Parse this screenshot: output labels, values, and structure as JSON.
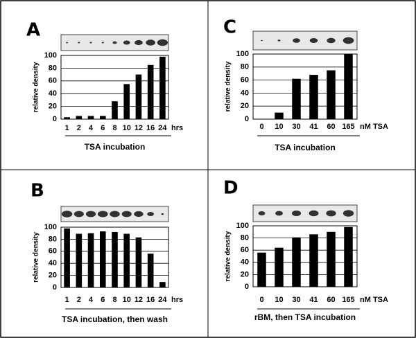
{
  "chart_data": [
    {
      "type": "bar",
      "panel": "A",
      "y_label": "relative density",
      "x_label": "TSA incubation",
      "x_unit": "hrs",
      "categories": [
        "1",
        "2",
        "4",
        "6",
        "8",
        "10",
        "12",
        "16",
        "24"
      ],
      "values": [
        3,
        5,
        5,
        5,
        28,
        55,
        70,
        85,
        98
      ],
      "color": "#000000",
      "ylim": [
        0,
        100
      ],
      "yticks": [
        0,
        20,
        40,
        60,
        80,
        100
      ],
      "grid": true
    },
    {
      "type": "bar",
      "panel": "C",
      "y_label": "relative density",
      "x_label": "TSA incubation",
      "x_unit": "nM TSA",
      "categories": [
        "0",
        "10",
        "30",
        "41",
        "60",
        "165"
      ],
      "values": [
        0,
        10,
        62,
        68,
        75,
        100
      ],
      "color": "#000000",
      "ylim": [
        0,
        100
      ],
      "yticks": [
        0,
        20,
        40,
        60,
        80,
        100
      ],
      "grid": true
    },
    {
      "type": "bar",
      "panel": "B",
      "y_label": "relative density",
      "x_label": "TSA incubation, then wash",
      "x_unit": "hrs",
      "categories": [
        "1",
        "2",
        "4",
        "6",
        "8",
        "10",
        "12",
        "16",
        "24"
      ],
      "values": [
        98,
        89,
        90,
        93,
        92,
        89,
        83,
        56,
        9
      ],
      "color": "#000000",
      "ylim": [
        0,
        100
      ],
      "yticks": [
        0,
        20,
        40,
        60,
        80,
        100
      ],
      "grid": true
    },
    {
      "type": "bar",
      "panel": "D",
      "y_label": "relative density",
      "x_label": "rBM, then TSA incubation",
      "x_unit": "nM TSA",
      "categories": [
        "0",
        "10",
        "30",
        "41",
        "60",
        "165"
      ],
      "values": [
        56,
        64,
        81,
        86,
        90,
        98
      ],
      "color": "#000000",
      "ylim": [
        0,
        100
      ],
      "yticks": [
        0,
        20,
        40,
        60,
        80,
        100
      ],
      "grid": true
    }
  ]
}
